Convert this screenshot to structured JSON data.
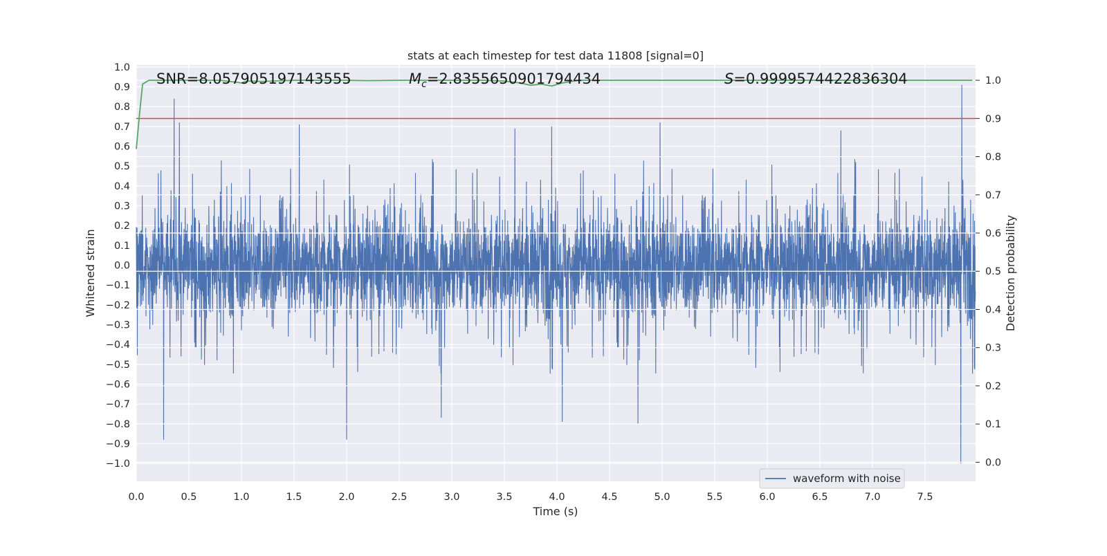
{
  "chart_data": {
    "type": "line",
    "title": "stats at each timestep for test data 11808 [signal=0]",
    "xlabel": "Time (s)",
    "ylabel": "Whitened strain",
    "y2label": "Detection probability",
    "xlim": [
      0.0,
      7.98
    ],
    "ylim": [
      -1.09,
      1.01
    ],
    "y2lim": [
      -0.05,
      1.04
    ],
    "x_ticks": [
      "0.0",
      "0.5",
      "1.0",
      "1.5",
      "2.0",
      "2.5",
      "3.0",
      "3.5",
      "4.0",
      "4.5",
      "5.0",
      "5.5",
      "6.0",
      "6.5",
      "7.0",
      "7.5"
    ],
    "x_tick_values": [
      0.0,
      0.5,
      1.0,
      1.5,
      2.0,
      2.5,
      3.0,
      3.5,
      4.0,
      4.5,
      5.0,
      5.5,
      6.0,
      6.5,
      7.0,
      7.5
    ],
    "y_ticks": [
      "1.0",
      "0.9",
      "0.8",
      "0.7",
      "0.6",
      "0.5",
      "0.4",
      "0.3",
      "0.2",
      "0.1",
      "0.0",
      "−0.1",
      "−0.2",
      "−0.3",
      "−0.4",
      "−0.5",
      "−0.6",
      "−0.7",
      "−0.8",
      "−0.9",
      "−1.0"
    ],
    "y_tick_values": [
      1.0,
      0.9,
      0.8,
      0.7,
      0.6,
      0.5,
      0.4,
      0.3,
      0.2,
      0.1,
      0.0,
      -0.1,
      -0.2,
      -0.3,
      -0.4,
      -0.5,
      -0.6,
      -0.7,
      -0.8,
      -0.9,
      -1.0
    ],
    "y2_ticks": [
      "1.0",
      "0.9",
      "0.8",
      "0.7",
      "0.6",
      "0.5",
      "0.4",
      "0.3",
      "0.2",
      "0.1",
      "0.0"
    ],
    "y2_tick_values": [
      1.0,
      0.9,
      0.8,
      0.7,
      0.6,
      0.5,
      0.4,
      0.3,
      0.2,
      0.1,
      0.0
    ],
    "annotations": {
      "snr": "SNR=8.057905197143555",
      "mc": "=2.8355650901794434",
      "mc_symbol": "M",
      "mc_sub": "c",
      "s": "=0.9999574422836304",
      "s_symbol": "S"
    },
    "series": [
      {
        "name": "waveform with noise",
        "axis": "left",
        "kind": "noise",
        "sample_rate": 512,
        "duration": 7.98,
        "typical_range": [
          -0.45,
          0.45
        ],
        "spikes": [
          {
            "x": 0.36,
            "y": 0.84
          },
          {
            "x": 0.41,
            "y": 0.72
          },
          {
            "x": 0.26,
            "y": -0.88
          },
          {
            "x": 2.0,
            "y": -0.88
          },
          {
            "x": 1.55,
            "y": 0.71
          },
          {
            "x": 4.05,
            "y": -0.79
          },
          {
            "x": 4.77,
            "y": -0.8
          },
          {
            "x": 4.98,
            "y": 0.72
          },
          {
            "x": 3.95,
            "y": 0.7
          },
          {
            "x": 2.9,
            "y": -0.77
          },
          {
            "x": 7.85,
            "y": 0.91
          },
          {
            "x": 7.84,
            "y": -1.0
          },
          {
            "x": 3.6,
            "y": 0.69
          },
          {
            "x": 6.7,
            "y": 0.68
          }
        ]
      },
      {
        "name": "",
        "axis": "right",
        "kind": "probability",
        "x": [
          0.0,
          0.03,
          0.06,
          0.12,
          0.2,
          0.5,
          0.8,
          0.95,
          1.0,
          1.05,
          1.2,
          1.5,
          2.0,
          2.2,
          2.5,
          3.0,
          3.3,
          3.5,
          3.65,
          3.75,
          3.85,
          3.95,
          4.05,
          4.2,
          4.5,
          5.0,
          6.0,
          7.0,
          7.95
        ],
        "values": [
          0.82,
          0.91,
          0.99,
          1.0,
          1.0,
          1.0,
          1.0,
          0.995,
          0.993,
          0.998,
          0.997,
          1.0,
          1.0,
          0.999,
          1.0,
          1.0,
          1.0,
          0.998,
          0.993,
          0.987,
          0.99,
          0.985,
          0.993,
          1.0,
          1.0,
          1.0,
          1.0,
          1.0,
          1.0
        ]
      }
    ],
    "threshold": 0.9,
    "colors": {
      "waveform": "#4c72b0",
      "probability": "#55a868",
      "threshold": "#c44e52",
      "plot_bg": "#eaeaf2",
      "grid": "#ffffff"
    },
    "legend": {
      "placement": "lower-center",
      "label": "waveform with noise"
    },
    "grid": true
  }
}
